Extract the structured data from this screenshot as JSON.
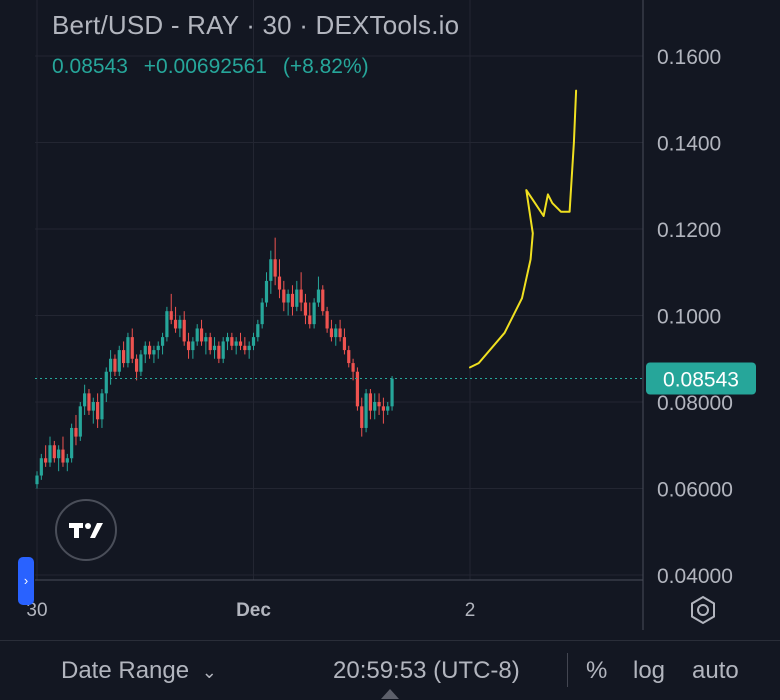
{
  "header": {
    "title": "Bert/USD - RAY · 30 · DEXTools.io",
    "last_price": "0.08543",
    "change": "+0.00692561",
    "change_pct": "(+8.82%)"
  },
  "chart_data": {
    "type": "candlestick",
    "title": "Bert/USD - RAY · 30 · DEXTools.io",
    "ylim": [
      0.04,
      0.17
    ],
    "y_ticks": [
      "0.1600",
      "0.1400",
      "0.1200",
      "0.1000",
      "0.08000",
      "0.06000",
      "0.04000"
    ],
    "y_tick_values": [
      0.16,
      0.14,
      0.12,
      0.1,
      0.08,
      0.06,
      0.04
    ],
    "x_ticks": [
      "30",
      "Dec",
      "2"
    ],
    "x_tick_index": [
      0,
      50,
      100
    ],
    "price_line": {
      "value": 0.08543,
      "label": "0.08543",
      "color": "#26a69a"
    },
    "up_color": "#26a69a",
    "down_color": "#ef5350",
    "candles": [
      [
        0.061,
        0.064,
        0.06,
        0.063
      ],
      [
        0.063,
        0.068,
        0.062,
        0.067
      ],
      [
        0.067,
        0.07,
        0.065,
        0.066
      ],
      [
        0.066,
        0.072,
        0.065,
        0.07
      ],
      [
        0.07,
        0.071,
        0.066,
        0.067
      ],
      [
        0.067,
        0.07,
        0.064,
        0.069
      ],
      [
        0.069,
        0.072,
        0.065,
        0.066
      ],
      [
        0.066,
        0.068,
        0.064,
        0.067
      ],
      [
        0.067,
        0.075,
        0.066,
        0.074
      ],
      [
        0.074,
        0.077,
        0.07,
        0.072
      ],
      [
        0.072,
        0.08,
        0.071,
        0.079
      ],
      [
        0.079,
        0.084,
        0.077,
        0.082
      ],
      [
        0.082,
        0.083,
        0.077,
        0.078
      ],
      [
        0.078,
        0.081,
        0.075,
        0.08
      ],
      [
        0.08,
        0.082,
        0.074,
        0.076
      ],
      [
        0.076,
        0.083,
        0.074,
        0.082
      ],
      [
        0.082,
        0.088,
        0.08,
        0.087
      ],
      [
        0.087,
        0.092,
        0.084,
        0.09
      ],
      [
        0.09,
        0.091,
        0.086,
        0.087
      ],
      [
        0.087,
        0.093,
        0.086,
        0.092
      ],
      [
        0.092,
        0.094,
        0.088,
        0.089
      ],
      [
        0.089,
        0.096,
        0.088,
        0.095
      ],
      [
        0.095,
        0.097,
        0.089,
        0.09
      ],
      [
        0.09,
        0.091,
        0.085,
        0.087
      ],
      [
        0.087,
        0.092,
        0.086,
        0.091
      ],
      [
        0.091,
        0.094,
        0.089,
        0.093
      ],
      [
        0.093,
        0.094,
        0.09,
        0.091
      ],
      [
        0.091,
        0.093,
        0.089,
        0.092
      ],
      [
        0.092,
        0.094,
        0.09,
        0.093
      ],
      [
        0.093,
        0.096,
        0.091,
        0.095
      ],
      [
        0.095,
        0.102,
        0.094,
        0.101
      ],
      [
        0.101,
        0.105,
        0.098,
        0.099
      ],
      [
        0.099,
        0.102,
        0.096,
        0.097
      ],
      [
        0.097,
        0.1,
        0.095,
        0.099
      ],
      [
        0.099,
        0.101,
        0.093,
        0.094
      ],
      [
        0.094,
        0.096,
        0.09,
        0.092
      ],
      [
        0.092,
        0.095,
        0.09,
        0.094
      ],
      [
        0.094,
        0.098,
        0.093,
        0.097
      ],
      [
        0.097,
        0.099,
        0.093,
        0.094
      ],
      [
        0.094,
        0.096,
        0.091,
        0.095
      ],
      [
        0.095,
        0.096,
        0.091,
        0.092
      ],
      [
        0.092,
        0.095,
        0.09,
        0.093
      ],
      [
        0.093,
        0.094,
        0.089,
        0.09
      ],
      [
        0.09,
        0.095,
        0.089,
        0.094
      ],
      [
        0.094,
        0.096,
        0.092,
        0.095
      ],
      [
        0.095,
        0.096,
        0.092,
        0.093
      ],
      [
        0.093,
        0.095,
        0.091,
        0.094
      ],
      [
        0.094,
        0.096,
        0.092,
        0.093
      ],
      [
        0.093,
        0.095,
        0.091,
        0.092
      ],
      [
        0.092,
        0.094,
        0.09,
        0.093
      ],
      [
        0.093,
        0.096,
        0.092,
        0.095
      ],
      [
        0.095,
        0.099,
        0.094,
        0.098
      ],
      [
        0.098,
        0.104,
        0.097,
        0.103
      ],
      [
        0.103,
        0.11,
        0.102,
        0.108
      ],
      [
        0.108,
        0.115,
        0.105,
        0.113
      ],
      [
        0.113,
        0.118,
        0.107,
        0.109
      ],
      [
        0.109,
        0.113,
        0.104,
        0.106
      ],
      [
        0.106,
        0.108,
        0.101,
        0.103
      ],
      [
        0.103,
        0.106,
        0.1,
        0.105
      ],
      [
        0.105,
        0.107,
        0.1,
        0.102
      ],
      [
        0.102,
        0.108,
        0.101,
        0.106
      ],
      [
        0.106,
        0.11,
        0.101,
        0.103
      ],
      [
        0.103,
        0.105,
        0.098,
        0.1
      ],
      [
        0.1,
        0.103,
        0.097,
        0.098
      ],
      [
        0.098,
        0.104,
        0.097,
        0.103
      ],
      [
        0.103,
        0.109,
        0.102,
        0.106
      ],
      [
        0.106,
        0.107,
        0.1,
        0.101
      ],
      [
        0.101,
        0.102,
        0.096,
        0.097
      ],
      [
        0.097,
        0.099,
        0.094,
        0.095
      ],
      [
        0.095,
        0.098,
        0.093,
        0.097
      ],
      [
        0.097,
        0.099,
        0.094,
        0.095
      ],
      [
        0.095,
        0.097,
        0.091,
        0.092
      ],
      [
        0.092,
        0.093,
        0.088,
        0.089
      ],
      [
        0.089,
        0.09,
        0.085,
        0.087
      ],
      [
        0.087,
        0.088,
        0.078,
        0.079
      ],
      [
        0.079,
        0.081,
        0.072,
        0.074
      ],
      [
        0.074,
        0.083,
        0.073,
        0.082
      ],
      [
        0.082,
        0.083,
        0.076,
        0.078
      ],
      [
        0.078,
        0.082,
        0.076,
        0.08
      ],
      [
        0.08,
        0.082,
        0.077,
        0.079
      ],
      [
        0.079,
        0.081,
        0.075,
        0.078
      ],
      [
        0.078,
        0.08,
        0.077,
        0.079
      ],
      [
        0.079,
        0.086,
        0.078,
        0.0854
      ]
    ],
    "annotation": {
      "type": "freehand-projection",
      "color": "#f0e020",
      "points": [
        [
          100,
          0.088
        ],
        [
          102,
          0.089
        ],
        [
          108,
          0.096
        ],
        [
          112,
          0.104
        ],
        [
          114,
          0.113
        ],
        [
          114.5,
          0.119
        ],
        [
          113,
          0.129
        ],
        [
          115,
          0.126
        ],
        [
          117,
          0.123
        ],
        [
          118,
          0.128
        ],
        [
          119,
          0.126
        ],
        [
          121,
          0.124
        ],
        [
          123,
          0.124
        ],
        [
          124,
          0.14
        ],
        [
          124.5,
          0.152
        ]
      ]
    }
  },
  "bottom_bar": {
    "date_range": "Date Range",
    "time": "20:59:53 (UTC-8)",
    "percent": "%",
    "log": "log",
    "auto": "auto"
  }
}
